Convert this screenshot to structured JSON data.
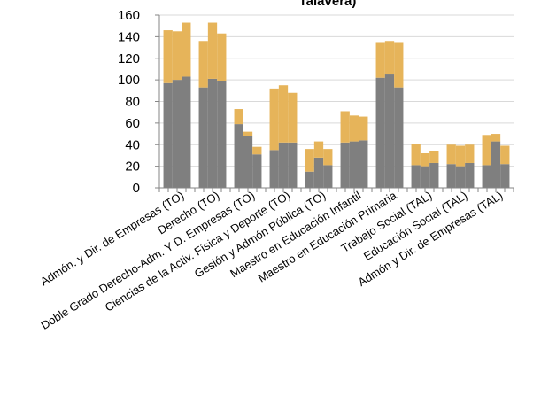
{
  "chart_data": {
    "type": "bar",
    "stacked": true,
    "title": "Talavera)",
    "xlabel": "",
    "ylabel": "",
    "ylim": [
      0,
      160
    ],
    "yticks": [
      0,
      20,
      40,
      60,
      80,
      100,
      120,
      140,
      160
    ],
    "grid": true,
    "legend": "none",
    "bars_per_group": 3,
    "categories": [
      "Admón. y Dir. de Empresas (TO)",
      "Derecho (TO)",
      "Doble Grado Derecho-Adm. Y D. Empresas (TO)",
      "Ciencias de la Activ. Física y Deporte (TO)",
      "Gesión y Admón Pública (TO)",
      "Maestro en Educación Infantil",
      "Maestro en Educación Primaria",
      "Trabajo Social (TAL)",
      "Educación Social (TAL)",
      "Admón y Dir. de Empresas (TAL)"
    ],
    "series": [
      {
        "color": "#7f7f7f",
        "values": [
          [
            97,
            100,
            103
          ],
          [
            93,
            101,
            99
          ],
          [
            59,
            48,
            31
          ],
          [
            35,
            42,
            42
          ],
          [
            15,
            28,
            21
          ],
          [
            42,
            43,
            44
          ],
          [
            102,
            105,
            93
          ],
          [
            21,
            20,
            23
          ],
          [
            22,
            20,
            23
          ],
          [
            21,
            43,
            22
          ]
        ]
      },
      {
        "color": "#e6b45a",
        "values": [
          [
            49,
            45,
            50
          ],
          [
            43,
            52,
            44
          ],
          [
            14,
            4,
            7
          ],
          [
            57,
            53,
            46
          ],
          [
            21,
            15,
            15
          ],
          [
            29,
            24,
            22
          ],
          [
            33,
            31,
            42
          ],
          [
            20,
            12,
            11
          ],
          [
            18,
            19,
            17
          ],
          [
            28,
            7,
            17
          ]
        ]
      }
    ]
  }
}
